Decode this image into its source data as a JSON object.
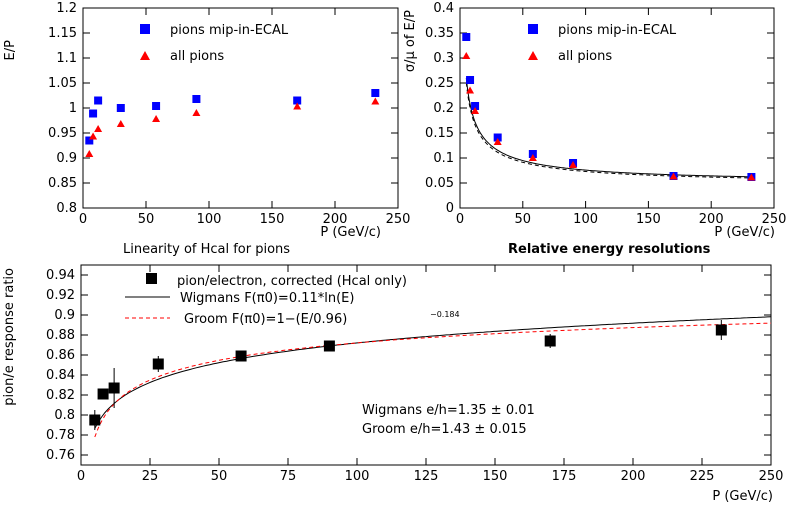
{
  "chart_data": [
    {
      "type": "scatter",
      "title": "",
      "caption": "Linearity of Hcal for pions",
      "xlabel": "P (GeV/c)",
      "ylabel": "E/P",
      "xlim": [
        0,
        250
      ],
      "ylim": [
        0.8,
        1.2
      ],
      "xticks": [
        0,
        50,
        100,
        150,
        200,
        250
      ],
      "yticks": [
        0.8,
        0.85,
        0.9,
        0.95,
        1,
        1.05,
        1.1,
        1.15,
        1.2
      ],
      "ytick_labels": [
        "0.8",
        "0.85",
        "0.9",
        "0.95",
        "1",
        "1.05",
        "1.1",
        "1.15",
        "1.2"
      ],
      "grid": false,
      "legend_position": "top-right",
      "series": [
        {
          "name": "pions mip-in-ECAL",
          "marker": "square",
          "color": "#0000ff",
          "x": [
            5,
            8,
            12,
            30,
            58,
            90,
            170,
            232
          ],
          "y": [
            0.935,
            0.989,
            1.015,
            1.0,
            1.004,
            1.018,
            1.015,
            1.03
          ]
        },
        {
          "name": "all pions",
          "marker": "triangle",
          "color": "#ff0000",
          "x": [
            5,
            8,
            12,
            30,
            58,
            90,
            170,
            232
          ],
          "y": [
            0.908,
            0.943,
            0.958,
            0.968,
            0.978,
            0.99,
            1.003,
            1.013
          ]
        }
      ]
    },
    {
      "type": "scatter",
      "title": "",
      "caption": "Relative energy resolutions",
      "xlabel": "P (GeV/c)",
      "ylabel": "σ/μ of E/P",
      "xlim": [
        0,
        250
      ],
      "ylim": [
        0,
        0.4
      ],
      "xticks": [
        0,
        50,
        100,
        150,
        200,
        250
      ],
      "yticks": [
        0,
        0.05,
        0.1,
        0.15,
        0.2,
        0.25,
        0.3,
        0.35,
        0.4
      ],
      "ytick_labels": [
        "0",
        "0.05",
        "0.1",
        "0.15",
        "0.2",
        "0.25",
        "0.3",
        "0.35",
        "0.4"
      ],
      "grid": false,
      "legend_position": "top-right",
      "series": [
        {
          "name": "pions mip-in-ECAL",
          "marker": "square",
          "color": "#0000ff",
          "x": [
            5,
            8,
            12,
            30,
            58,
            90,
            170,
            232
          ],
          "y": [
            0.342,
            0.256,
            0.204,
            0.141,
            0.108,
            0.09,
            0.064,
            0.062
          ]
        },
        {
          "name": "all pions",
          "marker": "triangle",
          "color": "#ff0000",
          "x": [
            5,
            8,
            12,
            30,
            58,
            90,
            170,
            232
          ],
          "y": [
            0.304,
            0.235,
            0.194,
            0.132,
            0.1,
            0.086,
            0.063,
            0.061
          ]
        }
      ],
      "curves": [
        {
          "style": "solid",
          "color": "#000000",
          "a": 0.57,
          "b": 0.05,
          "x_from": 5,
          "x_to": 232
        },
        {
          "style": "dashed",
          "color": "#000000",
          "a": 0.55,
          "b": 0.048,
          "x_from": 5,
          "x_to": 232
        }
      ]
    },
    {
      "type": "scatter",
      "title": "",
      "xlabel": "P (GeV/c)",
      "ylabel": "pion/e response ratio",
      "xlim": [
        0,
        250
      ],
      "ylim": [
        0.75,
        0.95
      ],
      "xticks": [
        0,
        25,
        50,
        75,
        100,
        125,
        150,
        175,
        200,
        225,
        250
      ],
      "yticks": [
        0.76,
        0.78,
        0.8,
        0.82,
        0.84,
        0.86,
        0.88,
        0.9,
        0.92,
        0.94
      ],
      "ytick_labels": [
        "0.76",
        "0.78",
        "0.8",
        "0.82",
        "0.84",
        "0.86",
        "0.88",
        "0.9",
        "0.92",
        "0.94"
      ],
      "grid": false,
      "legend_position": "top-left",
      "legend": {
        "points_label": "pion/electron, corrected (Hcal only)",
        "wigmans_label": "Wigmans   F(π0)=0.11*ln(E)",
        "groom_label": "Groom   F(π0)=1−(E/0.96)",
        "groom_exponent": "−0.184"
      },
      "annotations": [
        "Wigmans  e/h=1.35 ± 0.01",
        "Groom  e/h=1.43 ± 0.015"
      ],
      "series": [
        {
          "name": "pion/electron, corrected (Hcal only)",
          "marker": "square",
          "color": "#000000",
          "x": [
            5,
            8,
            12,
            28,
            58,
            90,
            170,
            232
          ],
          "y": [
            0.795,
            0.821,
            0.827,
            0.851,
            0.859,
            0.869,
            0.874,
            0.885
          ],
          "yerr": [
            0.01,
            0.005,
            0.02,
            0.008,
            0.004,
            0.004,
            0.007,
            0.01
          ]
        }
      ],
      "curves": [
        {
          "name": "Wigmans",
          "style": "solid",
          "color": "#000000",
          "e_over_h": 1.35,
          "model": "wigmans"
        },
        {
          "name": "Groom",
          "style": "dashed",
          "color": "#ff0000",
          "e_over_h": 1.43,
          "model": "groom"
        }
      ]
    }
  ]
}
